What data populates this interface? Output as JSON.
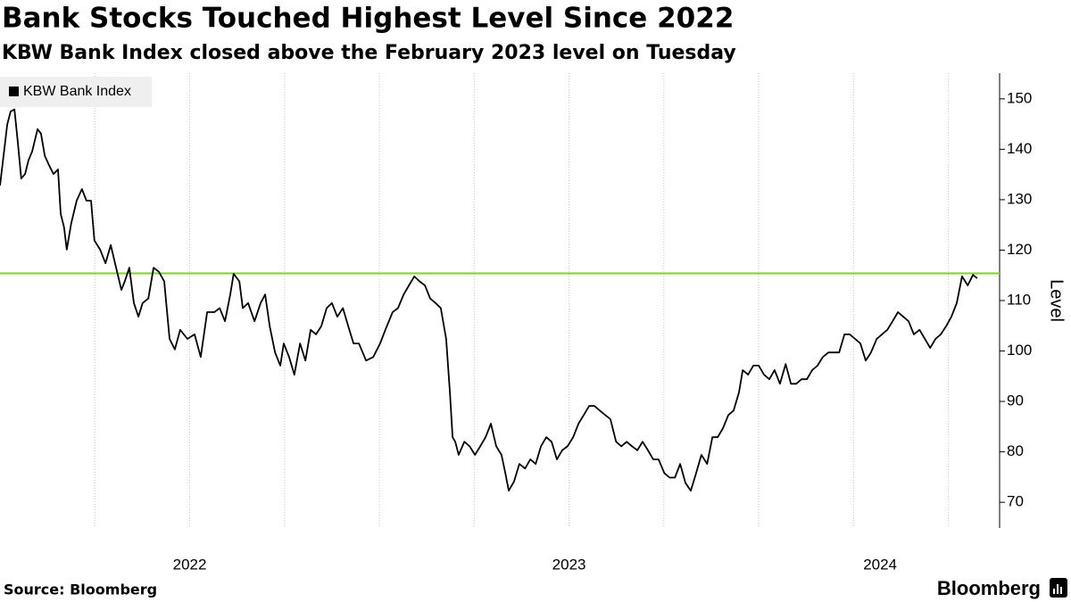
{
  "chart_data": {
    "type": "line",
    "title": "Bank Stocks Touched Highest Level Since 2022",
    "subtitle": "KBW Bank Index closed above the February 2023 level on Tuesday",
    "y_axis_label": "Level",
    "source": "Source: Bloomberg",
    "brand": "Bloomberg",
    "legend_position": "top-left",
    "xlim": [
      2022,
      2024.635
    ],
    "xticks": [
      {
        "value": 2022.5,
        "label": "2022"
      },
      {
        "value": 2023.5,
        "label": "2023"
      },
      {
        "value": 2024.32,
        "label": "2024"
      }
    ],
    "xgrid": [
      2022.25,
      2022.5,
      2022.75,
      2023,
      2023.25,
      2023.5,
      2023.75,
      2024,
      2024.25,
      2024.5
    ],
    "ylim": [
      64.9,
      155.1
    ],
    "yticks": [
      70,
      80,
      90,
      100,
      110,
      120,
      130,
      140,
      150
    ],
    "reference_line": {
      "value": 115.4,
      "color": "#7ed321"
    },
    "x": [
      2022.0,
      2022.012,
      2022.019,
      2022.028,
      2022.038,
      2022.047,
      2022.056,
      2022.066,
      2022.075,
      2022.085,
      2022.099,
      2022.108,
      2022.118,
      2022.129,
      2022.141,
      2022.153,
      2022.16,
      2022.169,
      2022.176,
      2022.188,
      2022.202,
      2022.216,
      2022.228,
      2022.24,
      2022.249,
      2022.264,
      2022.278,
      2022.292,
      2022.306,
      2022.32,
      2022.329,
      2022.341,
      2022.353,
      2022.365,
      2022.376,
      2022.391,
      2022.405,
      2022.419,
      2022.433,
      2022.447,
      2022.461,
      2022.475,
      2022.494,
      2022.513,
      2022.529,
      2022.546,
      2022.565,
      2022.579,
      2022.593,
      2022.607,
      2022.616,
      2022.631,
      2022.64,
      2022.654,
      2022.671,
      2022.687,
      2022.699,
      2022.711,
      2022.725,
      2022.739,
      2022.748,
      2022.762,
      2022.776,
      2022.791,
      2022.805,
      2022.819,
      2022.833,
      2022.847,
      2022.861,
      2022.875,
      2022.889,
      2022.904,
      2022.918,
      2022.932,
      2022.946,
      2022.965,
      2022.984,
      2023.002,
      2023.016,
      2023.035,
      2023.049,
      2023.064,
      2023.078,
      2023.092,
      2023.106,
      2023.12,
      2023.134,
      2023.148,
      2023.162,
      2023.176,
      2023.186,
      2023.193,
      2023.2,
      2023.209,
      2023.224,
      2023.238,
      2023.252,
      2023.266,
      2023.28,
      2023.294,
      2023.308,
      2023.322,
      2023.332,
      2023.341,
      2023.355,
      2023.369,
      2023.384,
      2023.398,
      2023.412,
      2023.426,
      2023.44,
      2023.454,
      2023.468,
      2023.482,
      2023.496,
      2023.511,
      2023.525,
      2023.539,
      2023.553,
      2023.567,
      2023.581,
      2023.595,
      2023.609,
      2023.624,
      2023.638,
      2023.652,
      2023.666,
      2023.68,
      2023.694,
      2023.708,
      2023.722,
      2023.736,
      2023.751,
      2023.765,
      2023.779,
      2023.793,
      2023.807,
      2023.821,
      2023.835,
      2023.849,
      2023.864,
      2023.878,
      2023.892,
      2023.906,
      2023.92,
      2023.934,
      2023.948,
      2023.958,
      2023.972,
      2023.986,
      2024.0,
      2024.014,
      2024.028,
      2024.042,
      2024.056,
      2024.071,
      2024.085,
      2024.099,
      2024.113,
      2024.127,
      2024.141,
      2024.155,
      2024.169,
      2024.184,
      2024.198,
      2024.212,
      2024.226,
      2024.24,
      2024.254,
      2024.268,
      2024.282,
      2024.296,
      2024.311,
      2024.325,
      2024.339,
      2024.353,
      2024.367,
      2024.381,
      2024.395,
      2024.409,
      2024.424,
      2024.438,
      2024.452,
      2024.466,
      2024.48,
      2024.494,
      2024.508,
      2024.522,
      2024.536,
      2024.551,
      2024.565,
      2024.576
    ],
    "series": [
      {
        "name": "KBW Bank Index",
        "color": "#000000",
        "values": [
          132.8,
          140.4,
          144.9,
          147.5,
          147.9,
          141.3,
          134.2,
          135.1,
          137.8,
          139.6,
          144.0,
          143.1,
          138.7,
          136.9,
          135.1,
          136.0,
          127.2,
          124.5,
          120.1,
          125.4,
          129.8,
          132.1,
          129.8,
          129.8,
          121.9,
          120.1,
          117.4,
          121.0,
          116.5,
          112.1,
          113.8,
          116.5,
          109.5,
          106.8,
          109.5,
          110.4,
          116.5,
          115.7,
          113.8,
          102.4,
          100.3,
          104.2,
          102.4,
          103.3,
          98.8,
          107.7,
          107.7,
          108.5,
          105.9,
          111.2,
          115.3,
          113.8,
          108.5,
          109.5,
          105.9,
          109.5,
          111.2,
          104.9,
          99.7,
          97.1,
          101.5,
          98.8,
          95.3,
          101.5,
          98.1,
          104.2,
          103.3,
          104.9,
          108.5,
          109.5,
          106.8,
          108.5,
          104.9,
          101.5,
          101.5,
          98.1,
          98.8,
          101.5,
          104.2,
          107.7,
          108.5,
          111.2,
          113.0,
          114.8,
          113.8,
          113.0,
          110.4,
          109.5,
          108.5,
          102.4,
          91.8,
          82.9,
          82.0,
          79.4,
          82.0,
          81.1,
          79.4,
          81.1,
          82.9,
          85.6,
          81.1,
          79.4,
          75.8,
          72.3,
          74.1,
          77.6,
          76.7,
          78.5,
          77.6,
          81.1,
          82.9,
          82.0,
          78.5,
          80.3,
          81.1,
          82.9,
          85.6,
          87.3,
          89.1,
          89.1,
          88.2,
          87.3,
          86.5,
          82.0,
          81.1,
          82.0,
          81.1,
          80.3,
          82.0,
          80.3,
          78.5,
          78.5,
          75.8,
          74.9,
          74.9,
          77.6,
          73.8,
          72.3,
          75.8,
          79.4,
          77.6,
          82.9,
          82.9,
          84.7,
          87.3,
          88.2,
          91.8,
          96.2,
          95.3,
          97.1,
          97.1,
          95.3,
          94.4,
          96.2,
          93.5,
          97.4,
          93.5,
          93.5,
          94.4,
          94.4,
          96.2,
          97.1,
          98.8,
          99.7,
          99.7,
          99.7,
          103.3,
          103.3,
          102.4,
          101.5,
          98.1,
          99.7,
          102.4,
          103.3,
          104.2,
          105.9,
          107.7,
          106.8,
          105.9,
          103.3,
          104.2,
          102.4,
          100.6,
          102.4,
          103.3,
          104.9,
          106.8,
          109.5,
          114.8,
          113.0,
          115.1,
          114.4
        ]
      }
    ]
  }
}
